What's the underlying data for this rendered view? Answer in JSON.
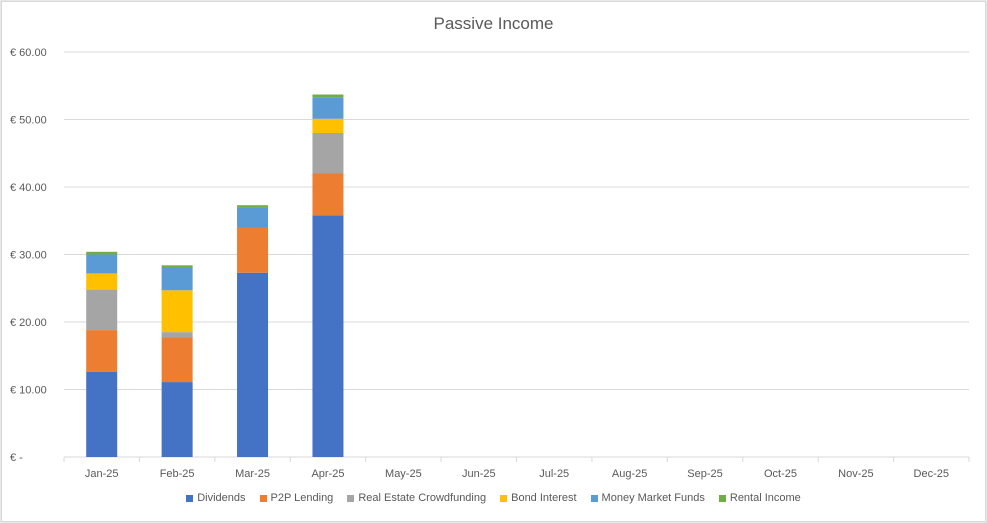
{
  "chart_data": {
    "type": "bar",
    "stacked": true,
    "title": "Passive Income",
    "xlabel": "",
    "ylabel": "",
    "categories": [
      "Jan-25",
      "Feb-25",
      "Mar-25",
      "Apr-25",
      "May-25",
      "Jun-25",
      "Jul-25",
      "Aug-25",
      "Sep-25",
      "Oct-25",
      "Nov-25",
      "Dec-25"
    ],
    "y_ticks": [
      "€ -",
      "€ 10.00",
      "€ 20.00",
      "€ 30.00",
      "€ 40.00",
      "€ 50.00",
      "€ 60.00"
    ],
    "ylim": [
      0,
      60
    ],
    "grid": true,
    "legend_position": "bottom",
    "series": [
      {
        "name": "Dividends",
        "color": "#4472C4",
        "values": [
          12.6,
          11.1,
          27.3,
          35.8,
          0,
          0,
          0,
          0,
          0,
          0,
          0,
          0
        ]
      },
      {
        "name": "P2P Lending",
        "color": "#ED7D31",
        "values": [
          6.2,
          6.6,
          6.7,
          6.2,
          0,
          0,
          0,
          0,
          0,
          0,
          0,
          0
        ]
      },
      {
        "name": "Real Estate Crowdfunding",
        "color": "#A5A5A5",
        "values": [
          6.0,
          0.8,
          0,
          6.0,
          0,
          0,
          0,
          0,
          0,
          0,
          0,
          0
        ]
      },
      {
        "name": "Bond Interest",
        "color": "#FFC000",
        "values": [
          2.4,
          6.2,
          0,
          2.1,
          0,
          0,
          0,
          0,
          0,
          0,
          0,
          0
        ]
      },
      {
        "name": "Money Market Funds",
        "color": "#5B9BD5",
        "values": [
          2.8,
          3.3,
          2.9,
          3.2,
          0,
          0,
          0,
          0,
          0,
          0,
          0,
          0
        ]
      },
      {
        "name": "Rental Income",
        "color": "#70AD47",
        "values": [
          0.4,
          0.4,
          0.4,
          0.4,
          0,
          0,
          0,
          0,
          0,
          0,
          0,
          0
        ]
      }
    ]
  }
}
